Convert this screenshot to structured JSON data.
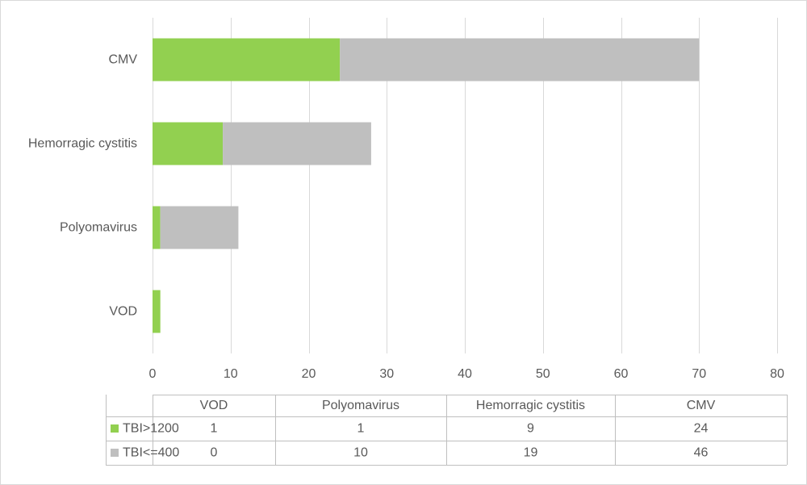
{
  "chart_data": {
    "type": "bar",
    "orientation": "horizontal",
    "stacked": true,
    "categories": [
      "VOD",
      "Polyomavirus",
      "Hemorragic cystitis",
      "CMV"
    ],
    "series": [
      {
        "name": "TBI>1200",
        "values": [
          1,
          1,
          9,
          24
        ],
        "color": "#92d050"
      },
      {
        "name": "TBI<=400",
        "values": [
          0,
          10,
          19,
          46
        ],
        "color": "#bfbfbf"
      }
    ],
    "xlim": [
      0,
      80
    ],
    "xticks": [
      0,
      10,
      20,
      30,
      40,
      50,
      60,
      70,
      80
    ],
    "grid": "vertical",
    "legend": "data-table-below"
  }
}
